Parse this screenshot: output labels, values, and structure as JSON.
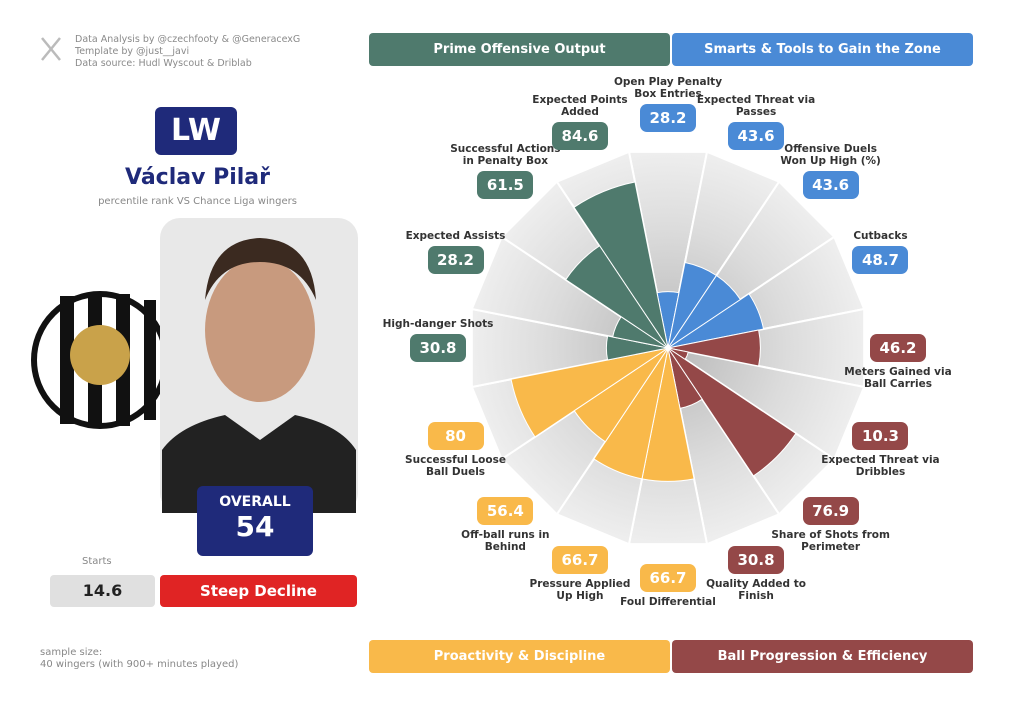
{
  "header": {
    "credits": [
      "Data Analysis by @czechfooty & @GeneracexG",
      "Template by @just__javi",
      "Data source: Hudl Wyscout & Driblab"
    ],
    "position": "LW",
    "player": "Václav Pilař",
    "subtitle": "percentile rank VS Chance Liga wingers"
  },
  "overall": {
    "label": "OVERALL",
    "value": "54"
  },
  "starts": {
    "label": "Starts",
    "value": "14.6",
    "trend": "Steep Decline"
  },
  "sample": [
    "sample size:",
    "40 wingers (with 900+ minutes played)"
  ],
  "chart_data": {
    "type": "pizza",
    "rlim": [
      0,
      100
    ],
    "series": [
      {
        "name": "Smarts & Tools to Gain the Zone",
        "color": "#4a8ad6",
        "categories": [
          "Open Play Penalty Box Entries",
          "Expected Threat via Passes",
          "Offensive Duels Won Up High (%)",
          "Cutbacks"
        ],
        "values": [
          28.2,
          43.6,
          43.6,
          48.7
        ]
      },
      {
        "name": "Ball Progression & Efficiency",
        "color": "#944848",
        "categories": [
          "Meters Gained via Ball Carries",
          "Expected Threat via Dribbles",
          "Share of Shots from Perimeter",
          "Quality Added to Finish"
        ],
        "values": [
          46.2,
          10.3,
          76.9,
          30.8
        ]
      },
      {
        "name": "Proactivity & Discipline",
        "color": "#f9b94a",
        "categories": [
          "Foul Differential",
          "Pressure Applied Up High",
          "Off-ball runs in Behind",
          "Successful Loose Ball Duels"
        ],
        "values": [
          66.7,
          66.7,
          56.4,
          80
        ]
      },
      {
        "name": "Prime Offensive Output",
        "color": "#4f7a6d",
        "categories": [
          "High-danger Shots",
          "Expected Assists",
          "Successful Actions in Penalty Box",
          "Expected Points Added"
        ],
        "values": [
          30.8,
          28.2,
          61.5,
          84.6
        ]
      }
    ]
  }
}
